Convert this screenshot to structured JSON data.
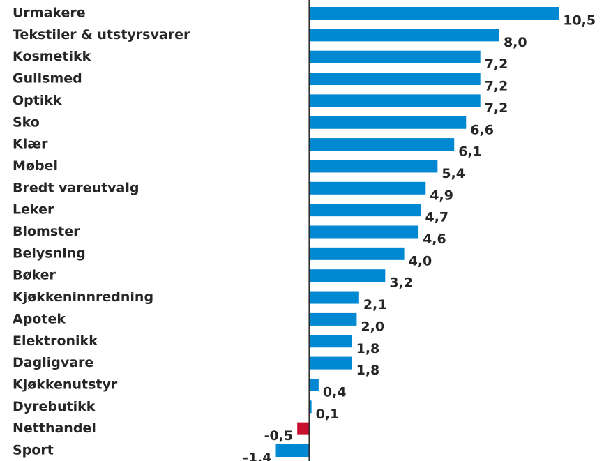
{
  "chart_data": {
    "type": "hbar",
    "categories": [
      "Urmakere",
      "Tekstiler & utstyrsvarer",
      "Kosmetikk",
      "Gullsmed",
      "Optikk",
      "Sko",
      "Klær",
      "Møbel",
      "Bredt vareutvalg",
      "Leker",
      "Blomster",
      "Belysning",
      "Bøker",
      "Kjøkkeninnredning",
      "Apotek",
      "Elektronikk",
      "Dagligvare",
      "Kjøkkenutstyr",
      "Dyrebutikk",
      "Netthandel",
      "Sport"
    ],
    "values": [
      10.5,
      8.0,
      7.2,
      7.2,
      7.2,
      6.6,
      6.1,
      5.4,
      4.9,
      4.7,
      4.6,
      4.0,
      3.2,
      2.1,
      2.0,
      1.8,
      1.8,
      0.4,
      0.1,
      -0.5,
      -1.4
    ],
    "value_labels": [
      "10,5",
      "8,0",
      "7,2",
      "7,2",
      "7,2",
      "6,6",
      "6,1",
      "5,4",
      "4,9",
      "4,7",
      "4,6",
      "4,0",
      "3,2",
      "2,1",
      "2,0",
      "1,8",
      "1,8",
      "0,4",
      "0,1",
      "-0,5",
      "-1,4"
    ],
    "colors": [
      "#0089d2",
      "#0089d2",
      "#0089d2",
      "#0089d2",
      "#0089d2",
      "#0089d2",
      "#0089d2",
      "#0089d2",
      "#0089d2",
      "#0089d2",
      "#0089d2",
      "#0089d2",
      "#0089d2",
      "#0089d2",
      "#0089d2",
      "#0089d2",
      "#0089d2",
      "#0089d2",
      "#0089d2",
      "#c8102e",
      "#0089d2"
    ],
    "xlim": [
      -13,
      12.4
    ]
  }
}
